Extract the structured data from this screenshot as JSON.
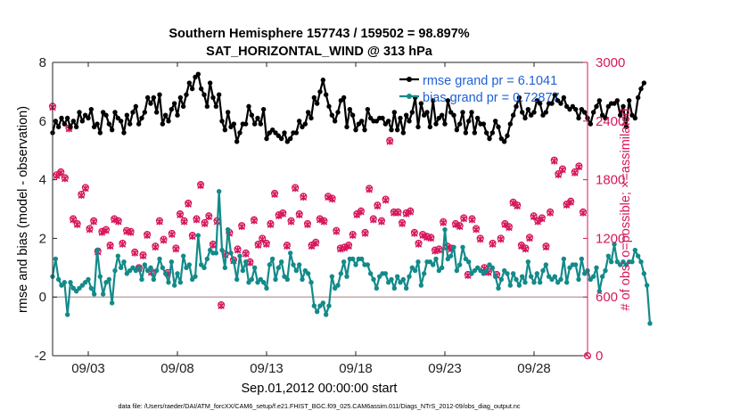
{
  "chart_data": {
    "type": "line",
    "title_line1": "Southern Hemisphere 157743 / 159502 = 98.897%",
    "title_line2": "SAT_HORIZONTAL_WIND @ 313 hPa",
    "xlabel": "Sep.01,2012 00:00:00 start",
    "ylabel_left": "rmse and bias (model - observation)",
    "ylabel_right": "# of obs: o=possible; ×=assimilated",
    "xlim": [
      1.0,
      31.0
    ],
    "ylim_left": [
      -2,
      8
    ],
    "ylim_right": [
      0,
      3000
    ],
    "xticks": [
      3,
      8,
      13,
      18,
      23,
      28
    ],
    "xtick_labels": [
      "09/03",
      "09/08",
      "09/13",
      "09/18",
      "09/23",
      "09/28"
    ],
    "yticks_left": [
      -2,
      0,
      2,
      4,
      6,
      8
    ],
    "ytick_labels_left": [
      "-2",
      "0",
      "2",
      "4",
      "6",
      "8"
    ],
    "yticks_right": [
      0,
      600,
      1200,
      1800,
      2400,
      3000
    ],
    "ytick_labels_right": [
      "0",
      "600",
      "1200",
      "1800",
      "2400",
      "3000"
    ],
    "zero_line": 0,
    "colors": {
      "rmse": "#000000",
      "bias": "#138a8a",
      "obs": "#d6175c",
      "zero": "#b9a3a6",
      "legend_text": "#1f5fd6"
    },
    "series": [
      {
        "name": "rmse",
        "legend": "rmse grand pr = 6.1041",
        "values": [
          5.6,
          6.0,
          5.8,
          6.1,
          5.9,
          6.1,
          5.8,
          6.0,
          5.8,
          6.3,
          6.0,
          6.2,
          6.1,
          6.4,
          5.8,
          5.9,
          5.6,
          6.3,
          6.2,
          5.9,
          5.7,
          6.3,
          6.1,
          6.0,
          5.6,
          6.2,
          5.9,
          6.3,
          6.5,
          5.9,
          6.1,
          6.3,
          6.8,
          6.6,
          6.8,
          6.3,
          6.9,
          5.9,
          6.2,
          6.0,
          6.4,
          6.6,
          6.2,
          6.8,
          6.5,
          6.9,
          7.3,
          7.1,
          7.5,
          7.6,
          7.1,
          6.9,
          6.5,
          7.3,
          6.8,
          6.5,
          6.9,
          6.0,
          5.7,
          6.3,
          5.8,
          5.9,
          5.3,
          5.6,
          5.9,
          5.9,
          6.5,
          6.2,
          5.9,
          6.1,
          5.9,
          6.4,
          5.4,
          5.6,
          5.7,
          5.6,
          5.5,
          5.4,
          5.6,
          5.3,
          5.4,
          5.6,
          5.6,
          6.0,
          5.8,
          5.9,
          6.3,
          6.1,
          6.8,
          6.6,
          7.0,
          7.4,
          6.9,
          6.5,
          6.2,
          6.0,
          6.3,
          6.7,
          6.8,
          5.8,
          6.4,
          6.2,
          5.7,
          5.9,
          6.0,
          5.7,
          6.4,
          6.1,
          6.0,
          6.0,
          6.1,
          6.1,
          5.9,
          6.0,
          5.7,
          6.3,
          5.7,
          6.1,
          5.6,
          6.2,
          6.0,
          6.3,
          6.8,
          5.8,
          6.6,
          6.2,
          6.3,
          5.8,
          6.7,
          5.9,
          6.1,
          6.2,
          5.9,
          6.7,
          6.3,
          6.2,
          5.7,
          5.9,
          6.3,
          5.6,
          6.0,
          6.3,
          5.6,
          6.1,
          5.9,
          5.9,
          5.6,
          5.4,
          5.6,
          6.0,
          5.8,
          5.4,
          5.3,
          5.5,
          5.9,
          6.2,
          6.5,
          6.8,
          6.3,
          6.1,
          6.4,
          6.2,
          6.3,
          6.7,
          6.6,
          6.2,
          6.3,
          6.6,
          6.6,
          6.9,
          6.7,
          6.6,
          6.8,
          6.5,
          6.4,
          6.5,
          6.4,
          6.1,
          6.4,
          6.3,
          6.1,
          5.9,
          6.3,
          6.5,
          6.7,
          6.2,
          6.1,
          6.5,
          6.6,
          6.6,
          6.7,
          6.2,
          6.5,
          5.8,
          6.7,
          6.2,
          6.1,
          6.8,
          7.1,
          7.3
        ],
        "points": "one every 4 h, starting 09/01 00:00"
      },
      {
        "name": "bias",
        "legend": "bias grand pr = 0.72877",
        "values": [
          0.7,
          1.3,
          0.6,
          0.4,
          0.5,
          -0.6,
          0.5,
          0.3,
          0.2,
          0.3,
          0.4,
          0.5,
          0.6,
          0.3,
          0.1,
          1.6,
          0.7,
          0.1,
          0.5,
          0.6,
          -0.2,
          0.9,
          1.4,
          1.0,
          1.2,
          0.8,
          0.9,
          1.0,
          0.9,
          1.0,
          0.6,
          1.1,
          0.9,
          1.0,
          0.6,
          0.9,
          1.3,
          1.0,
          0.8,
          0.5,
          1.2,
          0.4,
          0.8,
          0.5,
          1.4,
          1.0,
          1.1,
          0.6,
          0.7,
          2.1,
          1.1,
          1.0,
          1.3,
          1.6,
          1.5,
          1.5,
          3.6,
          1.6,
          1.0,
          2.3,
          1.5,
          1.2,
          0.6,
          1.4,
          0.9,
          1.2,
          0.5,
          0.6,
          1.0,
          0.5,
          0.6,
          0.5,
          0.3,
          1.1,
          1.3,
          0.6,
          1.0,
          1.2,
          0.7,
          0.6,
          1.5,
          1.1,
          0.9,
          1.1,
          0.6,
          0.9,
          0.8,
          0.5,
          -0.3,
          -0.5,
          -0.3,
          -0.2,
          -0.6,
          -0.3,
          0.7,
          0.3,
          0.4,
          0.8,
          1.2,
          0.7,
          1.3,
          1.3,
          1.1,
          1.3,
          1.3,
          1.1,
          1.1,
          0.8,
          0.6,
          0.3,
          0.7,
          0.8,
          0.8,
          0.5,
          0.6,
          0.3,
          0.7,
          0.5,
          0.6,
          0.3,
          0.7,
          1.0,
          0.9,
          1.2,
          0.4,
          0.8,
          1.2,
          1.2,
          1.1,
          1.3,
          0.9,
          1.0,
          2.3,
          1.3,
          1.4,
          1.7,
          0.9,
          1.1,
          1.7,
          1.3,
          1.2,
          0.8,
          0.9,
          1.0,
          0.9,
          0.8,
          0.9,
          1.1,
          1.0,
          0.7,
          0.3,
          0.6,
          0.9,
          0.8,
          0.4,
          0.8,
          0.6,
          0.4,
          0.7,
          0.5,
          1.2,
          0.7,
          0.5,
          0.8,
          0.5,
          0.9,
          1.1,
          0.7,
          0.6,
          0.7,
          0.5,
          0.6,
          1.3,
          0.5,
          1.0,
          1.1,
          1.1,
          0.6,
          1.3,
          0.8,
          0.9,
          0.6,
          0.7,
          1.0,
          0.2,
          0.7,
          0.9,
          1.4,
          1.2,
          1.8,
          1.2,
          1.1,
          1.2,
          1.1,
          1.2,
          1.2,
          1.6,
          1.4,
          1.2,
          0.8,
          0.4,
          -0.9
        ],
        "points": "one every 4 h, starting 09/01 00:00"
      },
      {
        "name": "obs_possible",
        "marker": "o",
        "values": [
          2550,
          1850,
          1880,
          1820,
          2330,
          1400,
          1350,
          1650,
          1720,
          1300,
          1380,
          1070,
          1270,
          1290,
          1130,
          1400,
          1380,
          1150,
          1280,
          1270,
          1060,
          900,
          1030,
          1240,
          860,
          1120,
          1380,
          1190,
          850,
          1250,
          1100,
          1450,
          1380,
          1560,
          1230,
          1400,
          1750,
          1360,
          1430,
          1140,
          1380,
          520,
          1040,
          1260,
          980,
          1090,
          1330,
          1050,
          960,
          1390,
          1140,
          1200,
          1150,
          1350,
          1660,
          1440,
          1460,
          1130,
          1380,
          1720,
          1450,
          1630,
          1350,
          1130,
          1160,
          1400,
          1380,
          1630,
          1610,
          1280,
          1100,
          1110,
          1130,
          1240,
          1450,
          1480,
          1260,
          1710,
          1400,
          1540,
          1380,
          1600,
          2200,
          1470,
          1470,
          1360,
          1460,
          1480,
          1260,
          1150,
          1240,
          1220,
          1210,
          1080,
          1090,
          1370,
          1120,
          1100,
          1350,
          1330,
          1410,
          830,
          1400,
          1300,
          1200,
          900,
          860,
          1150,
          830,
          1200,
          1350,
          1320,
          1570,
          1540,
          1130,
          1100,
          1210,
          1430,
          1380,
          1410,
          1120,
          1470,
          2000,
          1860,
          1910,
          1550,
          1580,
          1880,
          1940,
          1470
        ],
        "points": "evenly spaced 09/01 00:00 to 09/30 18:00"
      },
      {
        "name": "obs_assimilated",
        "marker": "x",
        "values": [
          2540,
          1840,
          1870,
          1810,
          2320,
          1390,
          1340,
          1640,
          1710,
          1290,
          1370,
          1060,
          1260,
          1280,
          1120,
          1390,
          1370,
          1140,
          1270,
          1260,
          1050,
          890,
          1020,
          1230,
          850,
          1110,
          1370,
          1180,
          840,
          1240,
          1090,
          1440,
          1370,
          1550,
          1220,
          1390,
          1740,
          1350,
          1420,
          1130,
          1370,
          510,
          1030,
          1250,
          970,
          1080,
          1320,
          1040,
          950,
          1380,
          1130,
          1190,
          1140,
          1340,
          1650,
          1430,
          1450,
          1120,
          1370,
          1710,
          1440,
          1620,
          1340,
          1120,
          1150,
          1390,
          1370,
          1620,
          1600,
          1270,
          1090,
          1100,
          1120,
          1230,
          1440,
          1470,
          1250,
          1700,
          1390,
          1530,
          1370,
          1590,
          2190,
          1460,
          1460,
          1350,
          1450,
          1470,
          1250,
          1140,
          1230,
          1210,
          1200,
          1070,
          1080,
          1360,
          1110,
          1090,
          1340,
          1320,
          1400,
          820,
          1390,
          1290,
          1190,
          890,
          850,
          1140,
          820,
          1190,
          1340,
          1310,
          1560,
          1530,
          1120,
          1090,
          1200,
          1420,
          1370,
          1400,
          1110,
          1460,
          1990,
          1850,
          1900,
          1540,
          1570,
          1870,
          1930,
          1460
        ],
        "points": "evenly spaced 09/01 00:00 to 09/30 18:00"
      }
    ],
    "final_obs_point": {
      "x": 31.0,
      "y": 0
    },
    "footer": "data file: /Users/raeder/DAI/ATM_forcXX/CAM6_setup/f.e21.FHIST_BGC.f09_025.CAM6assim.011/Diags_NTrS_2012-09/obs_diag_output.nc"
  }
}
